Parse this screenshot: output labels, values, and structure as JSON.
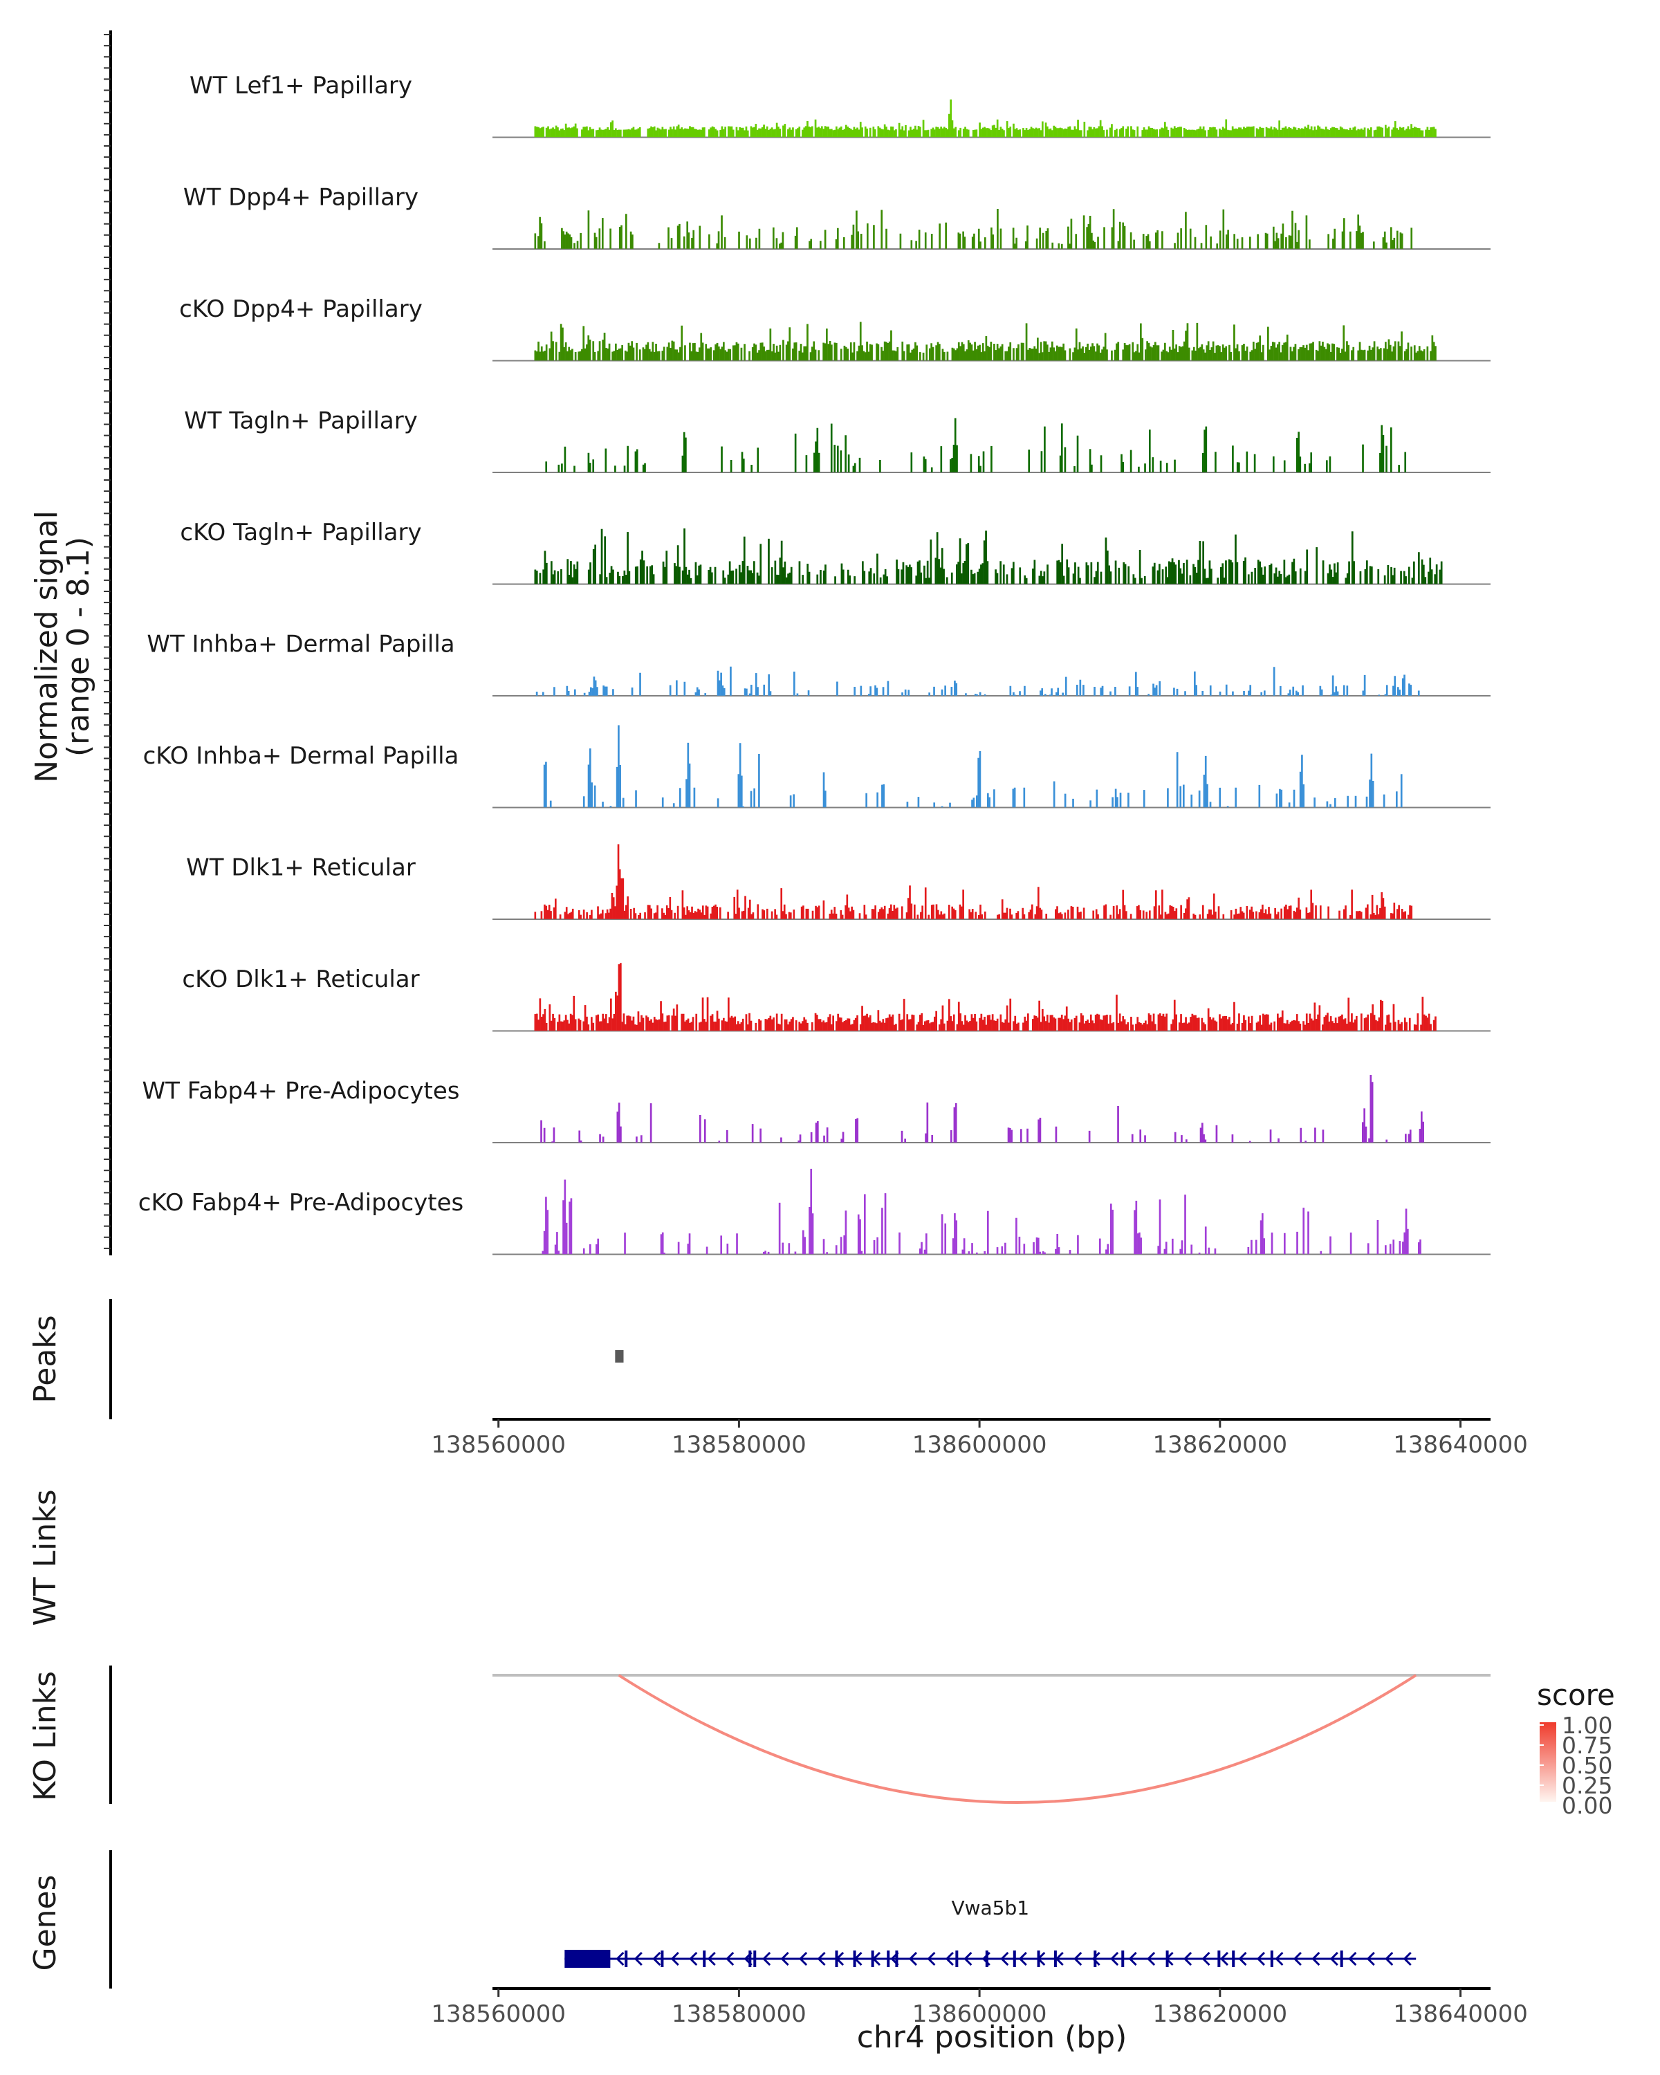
{
  "chart_data": {
    "type": "genome-coverage",
    "chromosome": "chr4",
    "region": [
      138563000,
      138638500
    ],
    "xlim": [
      138559500,
      138642500
    ],
    "x_ticks": [
      138560000,
      138580000,
      138600000,
      138620000,
      138640000
    ],
    "x_tick_labels": [
      "138560000",
      "138580000",
      "138600000",
      "138620000",
      "138640000"
    ],
    "xlabel": "chr4 position (bp)",
    "ylabel_line1": "Normalized signal",
    "ylabel_line2": "(range 0 - 8.1)",
    "signal_range": [
      0,
      8.1
    ],
    "coverage_tracks": [
      {
        "name": "WT Lef1+ Papillary",
        "color": "#66CC00",
        "mode": "dense",
        "density": 0.9,
        "baseline": 0.07,
        "noise": 0.08,
        "start": 138563000,
        "end": 138638000,
        "peaks": [
          [
            138597600,
            0.45
          ]
        ]
      },
      {
        "name": "WT Dpp4+ Papillary",
        "color": "#3A8A00",
        "mode": "sparse",
        "density": 0.28,
        "baseline": 0.05,
        "noise": 0.28,
        "start": 138563000,
        "end": 138636000,
        "peaks": [
          [
            138563500,
            0.42
          ],
          [
            138575000,
            0.35
          ],
          [
            138609200,
            0.38
          ],
          [
            138612000,
            0.36
          ],
          [
            138631500,
            0.38
          ]
        ]
      },
      {
        "name": "cKO Dpp4+ Papillary",
        "color": "#3D8C00",
        "mode": "dense",
        "density": 0.8,
        "baseline": 0.08,
        "noise": 0.22,
        "start": 138563000,
        "end": 138638000,
        "peaks": []
      },
      {
        "name": "WT Tagln+ Papillary",
        "color": "#0E6B00",
        "mode": "sparse",
        "density": 0.14,
        "baseline": 0.05,
        "noise": 0.35,
        "start": 138563000,
        "end": 138636000,
        "peaks": [
          [
            138575500,
            0.55
          ],
          [
            138586500,
            0.55
          ],
          [
            138598000,
            0.6
          ],
          [
            138618800,
            0.65
          ],
          [
            138626500,
            0.55
          ],
          [
            138633500,
            0.62
          ]
        ]
      },
      {
        "name": "cKO Tagln+ Papillary",
        "color": "#0A5A00",
        "mode": "dense",
        "density": 0.55,
        "baseline": 0.06,
        "noise": 0.35,
        "start": 138563000,
        "end": 138638500,
        "peaks": [
          [
            138563900,
            0.4
          ],
          [
            138568000,
            0.55
          ],
          [
            138572000,
            0.42
          ],
          [
            138596500,
            0.58
          ],
          [
            138599000,
            0.6
          ],
          [
            138600500,
            0.72
          ],
          [
            138616000,
            0.35
          ],
          [
            138637500,
            0.3
          ]
        ]
      },
      {
        "name": "WT Inhba+ Dermal Papilla",
        "color": "#3A90D8",
        "mode": "spiky",
        "density": 0.25,
        "baseline": 0.0,
        "noise": 0.22,
        "start": 138563000,
        "end": 138637000,
        "peaks": [
          [
            138568000,
            0.25
          ],
          [
            138578500,
            0.28
          ],
          [
            138598000,
            0.2
          ],
          [
            138635300,
            0.28
          ]
        ]
      },
      {
        "name": "cKO Inhba+ Dermal Papilla",
        "color": "#3A90D8",
        "mode": "spiky",
        "density": 0.16,
        "baseline": 0.0,
        "noise": 0.45,
        "start": 138563500,
        "end": 138637000,
        "peaks": [
          [
            138563900,
            0.65
          ],
          [
            138570000,
            0.92
          ],
          [
            138567600,
            0.75
          ],
          [
            138575800,
            0.8
          ],
          [
            138580100,
            0.72
          ],
          [
            138600000,
            0.78
          ],
          [
            138618800,
            0.62
          ],
          [
            138626800,
            0.65
          ],
          [
            138632600,
            0.6
          ]
        ]
      },
      {
        "name": "WT Dlk1+ Reticular",
        "color": "#E31A1C",
        "mode": "dense",
        "density": 0.6,
        "baseline": 0.04,
        "noise": 0.2,
        "start": 138563000,
        "end": 138636000,
        "peaks": [
          [
            138570000,
            0.92
          ],
          [
            138570300,
            0.6
          ],
          [
            138569500,
            0.35
          ],
          [
            138578000,
            0.2
          ],
          [
            138594200,
            0.4
          ],
          [
            138633500,
            0.35
          ]
        ]
      },
      {
        "name": "cKO Dlk1+ Reticular",
        "color": "#E31A1C",
        "mode": "dense",
        "density": 0.85,
        "baseline": 0.06,
        "noise": 0.22,
        "start": 138563000,
        "end": 138638000,
        "peaks": [
          [
            138570100,
            1.0
          ],
          [
            138569800,
            0.5
          ],
          [
            138563500,
            0.25
          ]
        ]
      },
      {
        "name": "WT Fabp4+ Pre-Adipocytes",
        "color": "#9A32CD",
        "mode": "spiky",
        "density": 0.12,
        "baseline": 0.0,
        "noise": 0.3,
        "start": 138563500,
        "end": 138637500,
        "peaks": [
          [
            138570000,
            0.52
          ],
          [
            138586500,
            0.3
          ],
          [
            138589800,
            0.35
          ],
          [
            138598000,
            0.55
          ],
          [
            138605000,
            0.35
          ],
          [
            138618500,
            0.25
          ],
          [
            138632600,
            0.95
          ],
          [
            138632000,
            0.4
          ],
          [
            138636800,
            0.38
          ]
        ]
      },
      {
        "name": "cKO Fabp4+ Pre-Adipocytes",
        "color": "#A23FD8",
        "mode": "spiky",
        "density": 0.2,
        "baseline": 0.0,
        "noise": 0.45,
        "start": 138563500,
        "end": 138637000,
        "peaks": [
          [
            138565500,
            0.95
          ],
          [
            138564000,
            0.75
          ],
          [
            138566000,
            0.8
          ],
          [
            138586000,
            0.98
          ],
          [
            138590000,
            0.55
          ],
          [
            138598000,
            0.55
          ],
          [
            138611000,
            0.7
          ],
          [
            138613000,
            0.72
          ],
          [
            138623500,
            0.55
          ],
          [
            138635500,
            0.52
          ]
        ]
      }
    ],
    "peaks_track": {
      "label": "Peaks",
      "color": "#595959",
      "intervals": [
        [
          138569700,
          138570400
        ]
      ]
    },
    "wt_links": {
      "label": "WT Links",
      "links": []
    },
    "ko_links": {
      "label": "KO Links",
      "links": [
        {
          "start": 138570000,
          "end": 138636300,
          "score": 0.35
        }
      ]
    },
    "score_legend": {
      "title": "score",
      "ticks": [
        "1.00",
        "0.75",
        "0.50",
        "0.25",
        "0.00"
      ],
      "low_color": "#FFF5F0",
      "high_color": "#EF3B2C"
    },
    "genes_track": {
      "label": "Genes",
      "color": "#00008B",
      "genes": [
        {
          "name": "Vwa5b1",
          "start": 138565500,
          "end": 138636300,
          "strand": "-",
          "utr": [
            138565500,
            138569300
          ],
          "exons": [
            138570500,
            138573500,
            138577000,
            138580800,
            138581200,
            138588000,
            138589500,
            138591000,
            138592300,
            138593000,
            138598000,
            138600500,
            138602800,
            138604800,
            138606200,
            138609500,
            138611800,
            138615500,
            138619800,
            138621000,
            138624200,
            138630000
          ]
        }
      ]
    }
  }
}
